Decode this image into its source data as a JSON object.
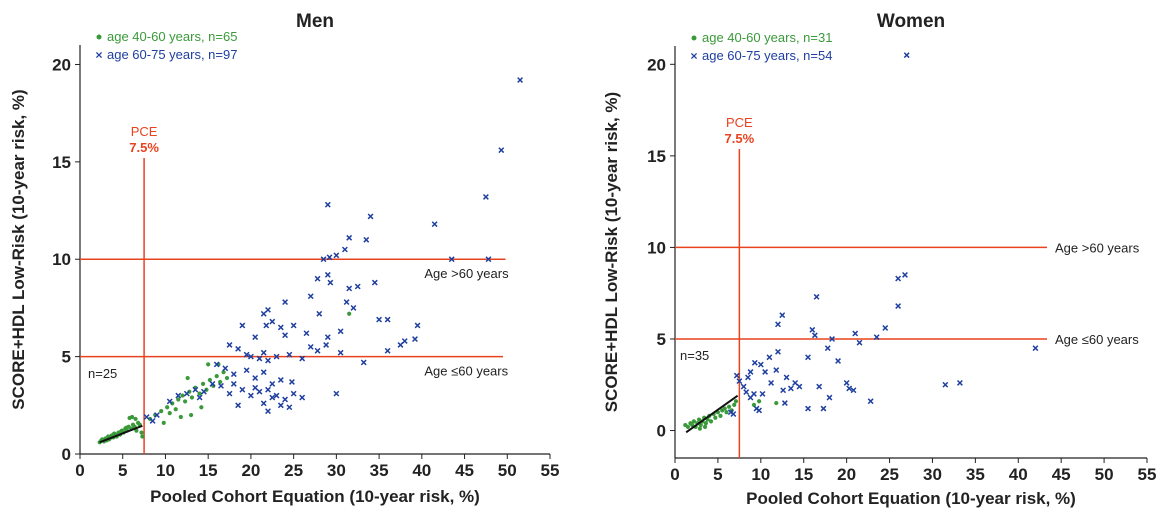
{
  "chart_data": [
    {
      "type": "scatter",
      "title": "Men",
      "xlabel": "Pooled Cohort Equation (10-year risk, %)",
      "ylabel": "SCORE+HDL Low-Risk (10-year risk, %)",
      "xlim": [
        0,
        55
      ],
      "ylim": [
        0,
        21
      ],
      "xticks": [
        0,
        5,
        10,
        15,
        20,
        25,
        30,
        35,
        40,
        45,
        50,
        55
      ],
      "yticks": [
        0,
        5,
        10,
        15,
        20
      ],
      "legend_position": "top-left",
      "colors": {
        "young": "#3a9a3a",
        "old": "#1f3fa0",
        "ref": "#e8421f",
        "fit": "#111111"
      },
      "reference_lines": {
        "vertical": {
          "x": 7.5,
          "label_line1": "PCE",
          "label_line2": "7.5%"
        },
        "horizontal": [
          {
            "y": 10,
            "label": "Age >60 years"
          },
          {
            "y": 5,
            "label": "Age ≤60 years"
          }
        ]
      },
      "annotation": "n=25",
      "fit_line": {
        "x": [
          2.3,
          7.3
        ],
        "y": [
          0.6,
          1.45
        ]
      },
      "series": [
        {
          "name": "age 40-60 years, n=65",
          "marker": "dot",
          "points": [
            [
              2.3,
              0.6
            ],
            [
              2.5,
              0.7
            ],
            [
              2.6,
              0.75
            ],
            [
              2.8,
              0.65
            ],
            [
              3.0,
              0.8
            ],
            [
              3.1,
              0.7
            ],
            [
              3.3,
              0.9
            ],
            [
              3.5,
              0.8
            ],
            [
              3.7,
              0.95
            ],
            [
              3.9,
              0.85
            ],
            [
              4.1,
              1.0
            ],
            [
              4.3,
              0.9
            ],
            [
              4.5,
              1.1
            ],
            [
              4.7,
              1.0
            ],
            [
              4.9,
              1.2
            ],
            [
              5.1,
              1.1
            ],
            [
              5.3,
              1.3
            ],
            [
              5.5,
              1.2
            ],
            [
              5.7,
              1.4
            ],
            [
              6.0,
              1.3
            ],
            [
              6.2,
              1.5
            ],
            [
              6.4,
              1.4
            ],
            [
              6.6,
              1.2
            ],
            [
              6.8,
              1.6
            ],
            [
              7.0,
              1.5
            ],
            [
              7.2,
              1.1
            ],
            [
              7.3,
              0.9
            ],
            [
              5.8,
              1.85
            ],
            [
              6.1,
              1.9
            ],
            [
              6.5,
              1.8
            ],
            [
              3.4,
              0.75
            ],
            [
              2.9,
              0.7
            ],
            [
              4.0,
              1.05
            ],
            [
              4.8,
              1.15
            ],
            [
              5.4,
              1.35
            ],
            [
              8.2,
              1.8
            ],
            [
              8.8,
              2.0
            ],
            [
              9.5,
              2.2
            ],
            [
              10.2,
              2.4
            ],
            [
              10.8,
              2.6
            ],
            [
              11.2,
              2.3
            ],
            [
              11.5,
              2.8
            ],
            [
              12.0,
              3.0
            ],
            [
              12.3,
              2.7
            ],
            [
              12.8,
              3.2
            ],
            [
              13.1,
              2.9
            ],
            [
              13.5,
              3.4
            ],
            [
              14.0,
              3.1
            ],
            [
              14.4,
              3.6
            ],
            [
              14.8,
              3.3
            ],
            [
              15.2,
              3.8
            ],
            [
              15.6,
              3.5
            ],
            [
              16.0,
              4.0
            ],
            [
              16.4,
              3.7
            ],
            [
              16.8,
              4.2
            ],
            [
              17.2,
              3.9
            ],
            [
              15.0,
              4.6
            ],
            [
              14.2,
              2.4
            ],
            [
              13.0,
              2.0
            ],
            [
              11.8,
              1.9
            ],
            [
              9.8,
              1.6
            ],
            [
              10.5,
              2.1
            ],
            [
              31.5,
              7.2
            ],
            [
              12.6,
              3.9
            ],
            [
              16.2,
              4.6
            ]
          ]
        },
        {
          "name": "age 60-75 years, n=97",
          "marker": "x",
          "points": [
            [
              51.5,
              19.2
            ],
            [
              49.3,
              15.6
            ],
            [
              47.5,
              13.2
            ],
            [
              29.0,
              12.8
            ],
            [
              34.0,
              12.2
            ],
            [
              41.5,
              11.8
            ],
            [
              31.5,
              11.1
            ],
            [
              33.5,
              11.0
            ],
            [
              30.0,
              10.2
            ],
            [
              28.5,
              10.0
            ],
            [
              29.2,
              10.1
            ],
            [
              31.0,
              10.5
            ],
            [
              43.5,
              10.0
            ],
            [
              47.8,
              10.0
            ],
            [
              29.0,
              9.2
            ],
            [
              27.8,
              9.0
            ],
            [
              29.3,
              8.8
            ],
            [
              31.5,
              8.5
            ],
            [
              32.5,
              8.6
            ],
            [
              27.0,
              8.1
            ],
            [
              31.2,
              7.8
            ],
            [
              32.0,
              7.5
            ],
            [
              24.0,
              7.8
            ],
            [
              22.0,
              7.4
            ],
            [
              21.5,
              7.2
            ],
            [
              28.0,
              7.2
            ],
            [
              34.5,
              8.8
            ],
            [
              35.0,
              6.9
            ],
            [
              36.0,
              6.9
            ],
            [
              39.5,
              6.6
            ],
            [
              38.0,
              5.8
            ],
            [
              39.2,
              5.9
            ],
            [
              30.5,
              6.3
            ],
            [
              29.0,
              6.0
            ],
            [
              26.5,
              6.2
            ],
            [
              27.0,
              5.5
            ],
            [
              25.0,
              6.6
            ],
            [
              24.0,
              6.1
            ],
            [
              23.5,
              6.5
            ],
            [
              22.5,
              6.8
            ],
            [
              21.8,
              6.6
            ],
            [
              19.0,
              6.6
            ],
            [
              20.5,
              6.0
            ],
            [
              19.5,
              5.1
            ],
            [
              18.5,
              5.4
            ],
            [
              17.5,
              5.6
            ],
            [
              20.0,
              5.0
            ],
            [
              21.0,
              4.9
            ],
            [
              21.5,
              5.2
            ],
            [
              22.0,
              4.8
            ],
            [
              23.0,
              5.0
            ],
            [
              24.5,
              5.1
            ],
            [
              26.0,
              4.9
            ],
            [
              27.8,
              5.3
            ],
            [
              28.8,
              5.6
            ],
            [
              30.5,
              5.2
            ],
            [
              33.2,
              4.7
            ],
            [
              36.0,
              5.3
            ],
            [
              16.0,
              4.6
            ],
            [
              17.0,
              4.4
            ],
            [
              18.0,
              4.1
            ],
            [
              19.5,
              4.3
            ],
            [
              20.5,
              3.9
            ],
            [
              21.5,
              4.2
            ],
            [
              22.5,
              3.6
            ],
            [
              23.5,
              3.8
            ],
            [
              24.8,
              3.7
            ],
            [
              18.0,
              3.6
            ],
            [
              19.0,
              3.3
            ],
            [
              20.5,
              3.4
            ],
            [
              21.0,
              3.2
            ],
            [
              22.0,
              3.3
            ],
            [
              23.0,
              3.0
            ],
            [
              24.0,
              2.8
            ],
            [
              25.0,
              3.1
            ],
            [
              26.0,
              2.9
            ],
            [
              20.0,
              3.0
            ],
            [
              21.5,
              2.6
            ],
            [
              22.5,
              2.9
            ],
            [
              23.5,
              2.5
            ],
            [
              17.5,
              3.1
            ],
            [
              18.5,
              2.5
            ],
            [
              16.5,
              3.5
            ],
            [
              14.5,
              3.2
            ],
            [
              15.5,
              3.6
            ],
            [
              13.5,
              3.3
            ],
            [
              12.5,
              3.1
            ],
            [
              11.5,
              3.0
            ],
            [
              10.5,
              2.7
            ],
            [
              14.0,
              2.9
            ],
            [
              9.0,
              2.0
            ],
            [
              8.5,
              1.7
            ],
            [
              7.8,
              1.9
            ],
            [
              24.5,
              2.4
            ],
            [
              22.0,
              2.2
            ],
            [
              30.0,
              3.1
            ],
            [
              37.5,
              5.6
            ]
          ]
        }
      ]
    },
    {
      "type": "scatter",
      "title": "Women",
      "xlabel": "Pooled Cohort Equation (10-year risk, %)",
      "ylabel": "SCORE+HDL Low-Risk (10-year risk, %)",
      "xlim": [
        0,
        55
      ],
      "ylim": [
        -1.5,
        21
      ],
      "xticks": [
        0,
        5,
        10,
        15,
        20,
        25,
        30,
        35,
        40,
        45,
        50,
        55
      ],
      "yticks": [
        0,
        5,
        10,
        15,
        20
      ],
      "legend_position": "top-left",
      "colors": {
        "young": "#3a9a3a",
        "old": "#1f3fa0",
        "ref": "#e8421f",
        "fit": "#111111"
      },
      "reference_lines": {
        "vertical": {
          "x": 7.5,
          "label_line1": "PCE",
          "label_line2": "7.5%"
        },
        "horizontal": [
          {
            "y": 10,
            "label": "Age >60 years"
          },
          {
            "y": 5,
            "label": "Age ≤60 years"
          }
        ]
      },
      "annotation": "n=35",
      "fit_line": {
        "x": [
          1.3,
          7.3
        ],
        "y": [
          -0.1,
          1.9
        ]
      },
      "series": [
        {
          "name": "age 40-60 years, n=31",
          "marker": "dot",
          "points": [
            [
              1.2,
              0.3
            ],
            [
              1.5,
              0.2
            ],
            [
              1.8,
              0.4
            ],
            [
              2.0,
              0.3
            ],
            [
              2.2,
              0.5
            ],
            [
              2.4,
              0.2
            ],
            [
              2.6,
              0.4
            ],
            [
              2.8,
              0.6
            ],
            [
              3.0,
              0.3
            ],
            [
              3.2,
              0.5
            ],
            [
              3.4,
              0.7
            ],
            [
              3.6,
              0.4
            ],
            [
              3.8,
              0.6
            ],
            [
              4.0,
              0.8
            ],
            [
              4.2,
              0.5
            ],
            [
              4.5,
              0.9
            ],
            [
              4.7,
              0.7
            ],
            [
              5.0,
              1.0
            ],
            [
              5.3,
              0.8
            ],
            [
              5.5,
              1.1
            ],
            [
              5.8,
              1.2
            ],
            [
              6.0,
              1.0
            ],
            [
              6.3,
              1.3
            ],
            [
              6.6,
              1.1
            ],
            [
              6.9,
              1.4
            ],
            [
              7.1,
              1.6
            ],
            [
              2.9,
              0.1
            ],
            [
              3.5,
              0.2
            ],
            [
              9.2,
              1.4
            ],
            [
              9.8,
              1.6
            ],
            [
              11.8,
              1.5
            ]
          ]
        },
        {
          "name": "age 60-75 years, n=54",
          "marker": "x",
          "points": [
            [
              27.0,
              20.5
            ],
            [
              26.8,
              8.5
            ],
            [
              26.0,
              8.3
            ],
            [
              26.0,
              6.8
            ],
            [
              16.5,
              7.3
            ],
            [
              12.5,
              6.3
            ],
            [
              12.0,
              5.8
            ],
            [
              24.5,
              5.6
            ],
            [
              21.0,
              5.3
            ],
            [
              21.5,
              4.8
            ],
            [
              23.5,
              5.1
            ],
            [
              16.0,
              5.5
            ],
            [
              16.3,
              5.2
            ],
            [
              18.3,
              5.0
            ],
            [
              17.8,
              4.5
            ],
            [
              15.5,
              4.0
            ],
            [
              12.0,
              4.3
            ],
            [
              11.0,
              4.0
            ],
            [
              10.0,
              3.6
            ],
            [
              9.3,
              3.7
            ],
            [
              8.8,
              3.2
            ],
            [
              8.5,
              2.9
            ],
            [
              8.0,
              2.4
            ],
            [
              7.5,
              2.7
            ],
            [
              7.2,
              3.0
            ],
            [
              10.5,
              3.2
            ],
            [
              11.8,
              3.3
            ],
            [
              13.0,
              2.9
            ],
            [
              14.5,
              2.4
            ],
            [
              13.5,
              2.3
            ],
            [
              12.6,
              2.2
            ],
            [
              19.0,
              3.8
            ],
            [
              20.0,
              2.6
            ],
            [
              20.3,
              2.3
            ],
            [
              20.8,
              2.2
            ],
            [
              12.8,
              1.5
            ],
            [
              15.5,
              1.2
            ],
            [
              17.3,
              1.2
            ],
            [
              9.5,
              1.2
            ],
            [
              9.8,
              1.1
            ],
            [
              8.8,
              1.8
            ],
            [
              9.2,
              2.0
            ],
            [
              31.5,
              2.5
            ],
            [
              33.2,
              2.6
            ],
            [
              42.0,
              4.5
            ],
            [
              22.8,
              1.6
            ],
            [
              10.2,
              2.0
            ],
            [
              11.2,
              2.6
            ],
            [
              14.0,
              2.6
            ],
            [
              8.3,
              2.1
            ],
            [
              6.8,
              0.9
            ],
            [
              6.5,
              1.0
            ],
            [
              18.0,
              1.8
            ],
            [
              16.8,
              2.4
            ]
          ]
        }
      ]
    }
  ]
}
